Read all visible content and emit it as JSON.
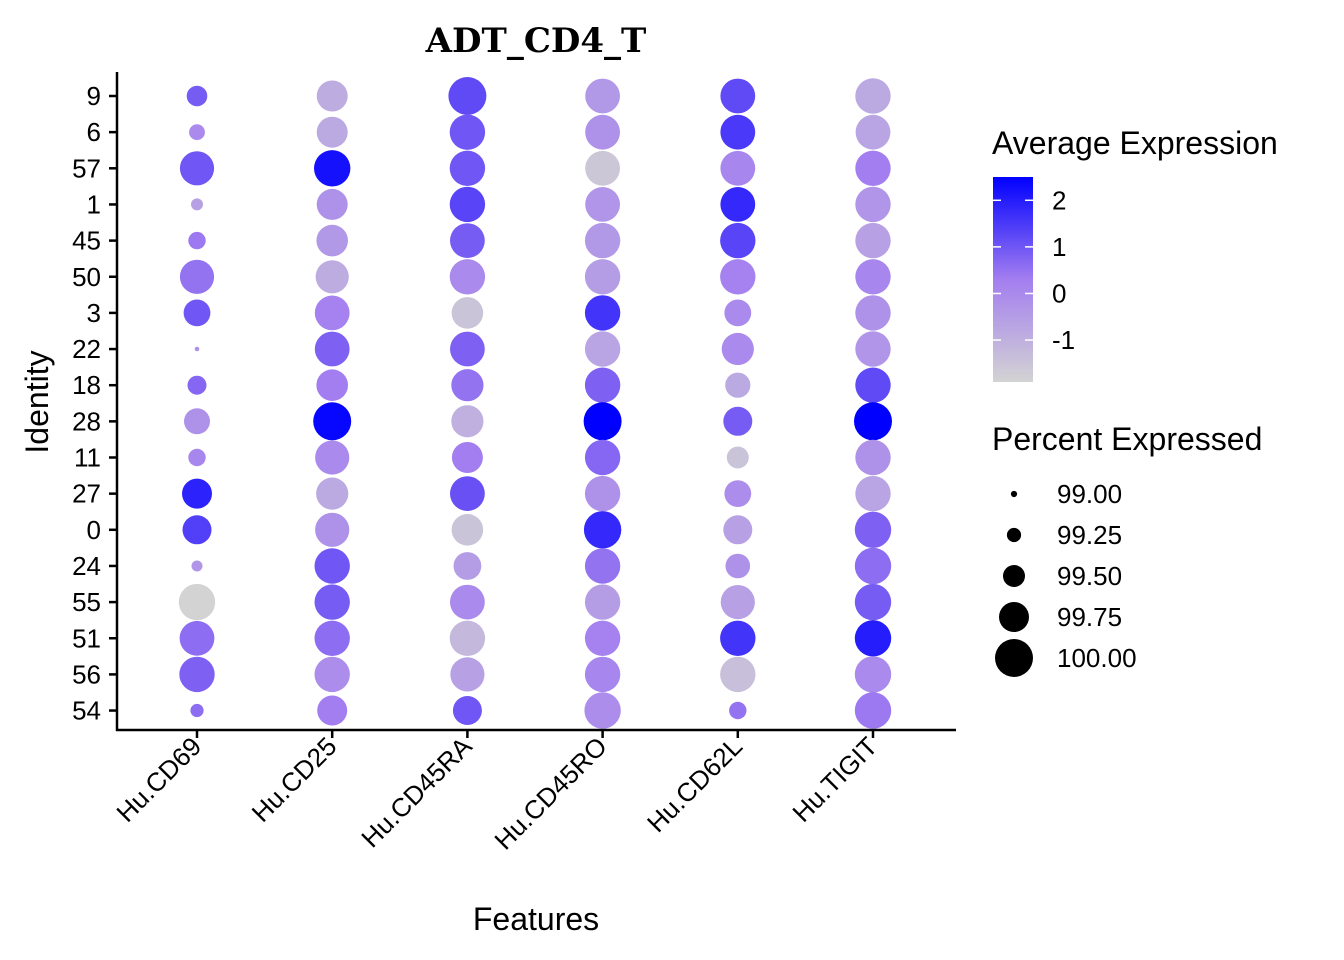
{
  "chart_data": {
    "type": "dotplot",
    "title": "ADT_CD4_T",
    "xlabel": "Features",
    "ylabel": "Identity",
    "features": [
      "Hu.CD69",
      "Hu.CD25",
      "Hu.CD45RA",
      "Hu.CD45RO",
      "Hu.CD62L",
      "Hu.TIGIT"
    ],
    "identities": [
      "9",
      "6",
      "57",
      "1",
      "45",
      "50",
      "3",
      "22",
      "18",
      "28",
      "11",
      "27",
      "0",
      "24",
      "55",
      "51",
      "56",
      "54"
    ],
    "color_scale": {
      "title": "Average Expression",
      "low": "#d3d3d3",
      "high": "#0000ff",
      "range": [
        -1.9,
        2.5
      ],
      "ticks": [
        2,
        1,
        0,
        -1
      ],
      "tick_labels": [
        "2",
        "1",
        "0",
        "-1"
      ]
    },
    "size_scale": {
      "title": "Percent Expressed",
      "range": [
        98.9,
        100.0
      ],
      "ticks": [
        99.0,
        99.25,
        99.5,
        99.75,
        100.0
      ],
      "tick_labels": [
        "99.00",
        "99.25",
        "99.50",
        "99.75",
        "100.00"
      ]
    },
    "series": [
      {
        "feature": "Hu.CD69",
        "avg_exp": [
          0.9,
          0.0,
          1.0,
          -0.6,
          0.4,
          0.5,
          1.0,
          -0.2,
          0.7,
          -0.2,
          0.1,
          1.9,
          1.4,
          -0.3,
          -1.9,
          0.6,
          0.8,
          0.6
        ],
        "pct_exp": [
          99.45,
          99.3,
          99.88,
          99.18,
          99.35,
          99.88,
          99.65,
          98.95,
          99.4,
          99.62,
          99.35,
          99.75,
          99.72,
          99.15,
          99.95,
          99.9,
          99.92,
          99.22
        ]
      },
      {
        "feature": "Hu.CD25",
        "avg_exp": [
          -0.9,
          -0.8,
          2.2,
          -0.2,
          -0.4,
          -0.9,
          0.2,
          0.8,
          0.3,
          2.4,
          0.0,
          -0.8,
          -0.2,
          1.0,
          0.9,
          0.6,
          -0.1,
          0.3
        ],
        "pct_exp": [
          99.78,
          99.78,
          99.95,
          99.78,
          99.8,
          99.85,
          99.9,
          99.9,
          99.8,
          100.0,
          99.88,
          99.82,
          99.88,
          99.92,
          99.92,
          99.92,
          99.92,
          99.75
        ]
      },
      {
        "feature": "Hu.CD45RA",
        "avg_exp": [
          1.2,
          1.0,
          1.0,
          1.3,
          0.9,
          0.0,
          -1.5,
          0.8,
          0.5,
          -1.0,
          0.3,
          1.1,
          -1.5,
          -0.5,
          0.0,
          -1.2,
          -0.6,
          1.0
        ],
        "pct_exp": [
          100.0,
          99.92,
          99.92,
          99.92,
          99.9,
          99.92,
          99.8,
          99.9,
          99.82,
          99.82,
          99.78,
          99.9,
          99.8,
          99.68,
          99.9,
          99.92,
          99.88,
          99.72
        ]
      },
      {
        "feature": "Hu.CD45RO",
        "avg_exp": [
          -0.4,
          -0.2,
          -1.6,
          -0.3,
          -0.4,
          -0.5,
          1.6,
          -0.7,
          0.8,
          2.5,
          0.7,
          -0.2,
          1.8,
          0.5,
          -0.5,
          0.2,
          0.1,
          -0.1
        ],
        "pct_exp": [
          99.9,
          99.9,
          99.9,
          99.9,
          99.92,
          99.92,
          99.92,
          99.92,
          99.92,
          100.0,
          99.92,
          99.92,
          99.98,
          99.92,
          99.92,
          99.92,
          99.92,
          99.95
        ]
      },
      {
        "feature": "Hu.CD62L",
        "avg_exp": [
          1.2,
          1.5,
          0.1,
          1.8,
          1.3,
          0.2,
          0.0,
          0.0,
          -0.8,
          0.9,
          -1.5,
          -0.1,
          -0.6,
          -0.2,
          -0.6,
          1.6,
          -1.4,
          0.5
        ],
        "pct_exp": [
          99.9,
          99.9,
          99.9,
          99.9,
          99.92,
          99.92,
          99.65,
          99.82,
          99.6,
          99.72,
          99.5,
          99.65,
          99.72,
          99.58,
          99.88,
          99.92,
          99.92,
          99.35
        ]
      },
      {
        "feature": "Hu.TIGIT",
        "avg_exp": [
          -0.8,
          -0.7,
          0.3,
          -0.3,
          -0.6,
          0.1,
          -0.2,
          -0.3,
          1.2,
          2.5,
          -0.2,
          -0.7,
          0.8,
          0.6,
          0.9,
          2.0,
          0.0,
          0.4
        ],
        "pct_exp": [
          99.92,
          99.9,
          99.92,
          99.92,
          99.92,
          99.92,
          99.92,
          99.92,
          99.92,
          100.0,
          99.92,
          99.92,
          99.95,
          99.95,
          99.95,
          99.95,
          99.95,
          99.95
        ]
      }
    ]
  }
}
